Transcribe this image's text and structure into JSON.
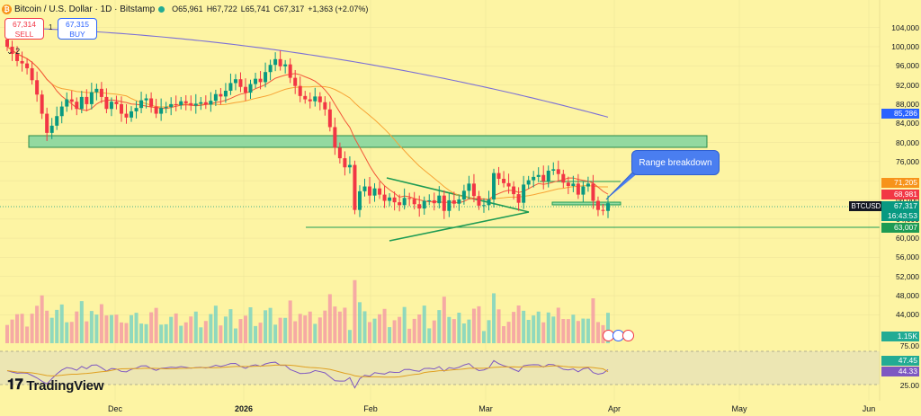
{
  "header": {
    "symbol_title": "Bitcoin / U.S. Dollar · 1D · Bitstamp",
    "ohlc": {
      "open": "O65,961",
      "high": "H67,722",
      "low": "L65,741",
      "close": "C67,317",
      "change": "+1,363 (+2.07%)"
    }
  },
  "trade": {
    "sell_price": "67,314",
    "sell_label": "SELL",
    "buy_price": "67,315",
    "buy_label": "BUY",
    "spread": "1"
  },
  "indicators": {
    "collapsed_count": "2"
  },
  "annotation": {
    "callout": "Range breakdown"
  },
  "price_axis": {
    "labels": [
      "104,000",
      "100,000",
      "96,000",
      "92,000",
      "88,000",
      "84,000",
      "80,000",
      "76,000",
      "72,000",
      "68,000",
      "64,000",
      "60,000",
      "56,000",
      "52,000",
      "48,000",
      "44,000"
    ],
    "badges": {
      "ma200": "85,286",
      "ma_slow": "71,205",
      "ma_fast": "68,981",
      "last": "67,317",
      "countdown": "16:43:53",
      "support": "63,007",
      "volume": "1.15K"
    },
    "symbol_tag": "BTCUSD"
  },
  "rsi_axis": {
    "labels": [
      "75.00",
      "25.00"
    ],
    "rsi_value": "47.45",
    "rsi_ma": "44.33"
  },
  "time_axis": {
    "labels": [
      {
        "t": "Dec",
        "bold": false
      },
      {
        "t": "2026",
        "bold": true
      },
      {
        "t": "Feb",
        "bold": false
      },
      {
        "t": "Mar",
        "bold": false
      },
      {
        "t": "Apr",
        "bold": false
      },
      {
        "t": "May",
        "bold": false
      },
      {
        "t": "Jun",
        "bold": false
      }
    ]
  },
  "branding": {
    "logo_text": "TradingView"
  },
  "colors": {
    "up": "#089981",
    "down": "#f23645",
    "ma200": "#7b6fd6",
    "ma_slow": "#f7a335",
    "ma_fast": "#f2573a",
    "zone": "#93d9a0",
    "support": "#1e9b54"
  },
  "chart_data": {
    "type": "candlestick",
    "symbol": "BTCUSD",
    "interval": "1D",
    "ylim": [
      42000,
      106000
    ],
    "last_close": 67317,
    "moving_averages": [
      {
        "value": 85286
      },
      {
        "value": 71205
      },
      {
        "value": 68981
      }
    ],
    "resistance_zone": [
      79500,
      81000
    ],
    "support_line": 63007,
    "range_box": [
      67500,
      68000
    ],
    "rsi": {
      "value": 47.45,
      "ma": 44.33,
      "levels": [
        25,
        75
      ]
    },
    "volume_last": "1.15K",
    "candles_approx_close": [
      100000,
      98500,
      97000,
      96500,
      95500,
      93000,
      90000,
      86000,
      82000,
      83500,
      85500,
      87500,
      89000,
      88500,
      87000,
      89500,
      88000,
      90500,
      91200,
      89500,
      87000,
      88500,
      88000,
      86000,
      85200,
      86500,
      87200,
      88800,
      89200,
      87500,
      86000,
      87200,
      87400,
      88000,
      87800,
      88600,
      88200,
      87700,
      88100,
      88400,
      87900,
      88700,
      90100,
      89600,
      90800,
      92400,
      93200,
      91600,
      90400,
      92200,
      93300,
      92600,
      94700,
      96200,
      97400,
      95900,
      96300,
      93500,
      91800,
      89700,
      89000,
      88600,
      89600,
      88400,
      86900,
      83200,
      78900,
      76700,
      74800,
      75300,
      65900,
      69800,
      70800,
      68900,
      70400,
      69100,
      67800,
      68500,
      67500,
      66900,
      68400,
      68200,
      67100,
      66200,
      67800,
      67900,
      67300,
      68900,
      65700,
      67900,
      67200,
      68100,
      69900,
      71400,
      68800,
      66800,
      66900,
      68100,
      73600,
      72400,
      71500,
      70800,
      69200,
      67400,
      71200,
      72100,
      72800,
      73200,
      71900,
      74100,
      74400,
      73400,
      71600,
      70900,
      71400,
      69100,
      70800,
      71400,
      67800,
      65900,
      65700,
      67300
    ]
  }
}
